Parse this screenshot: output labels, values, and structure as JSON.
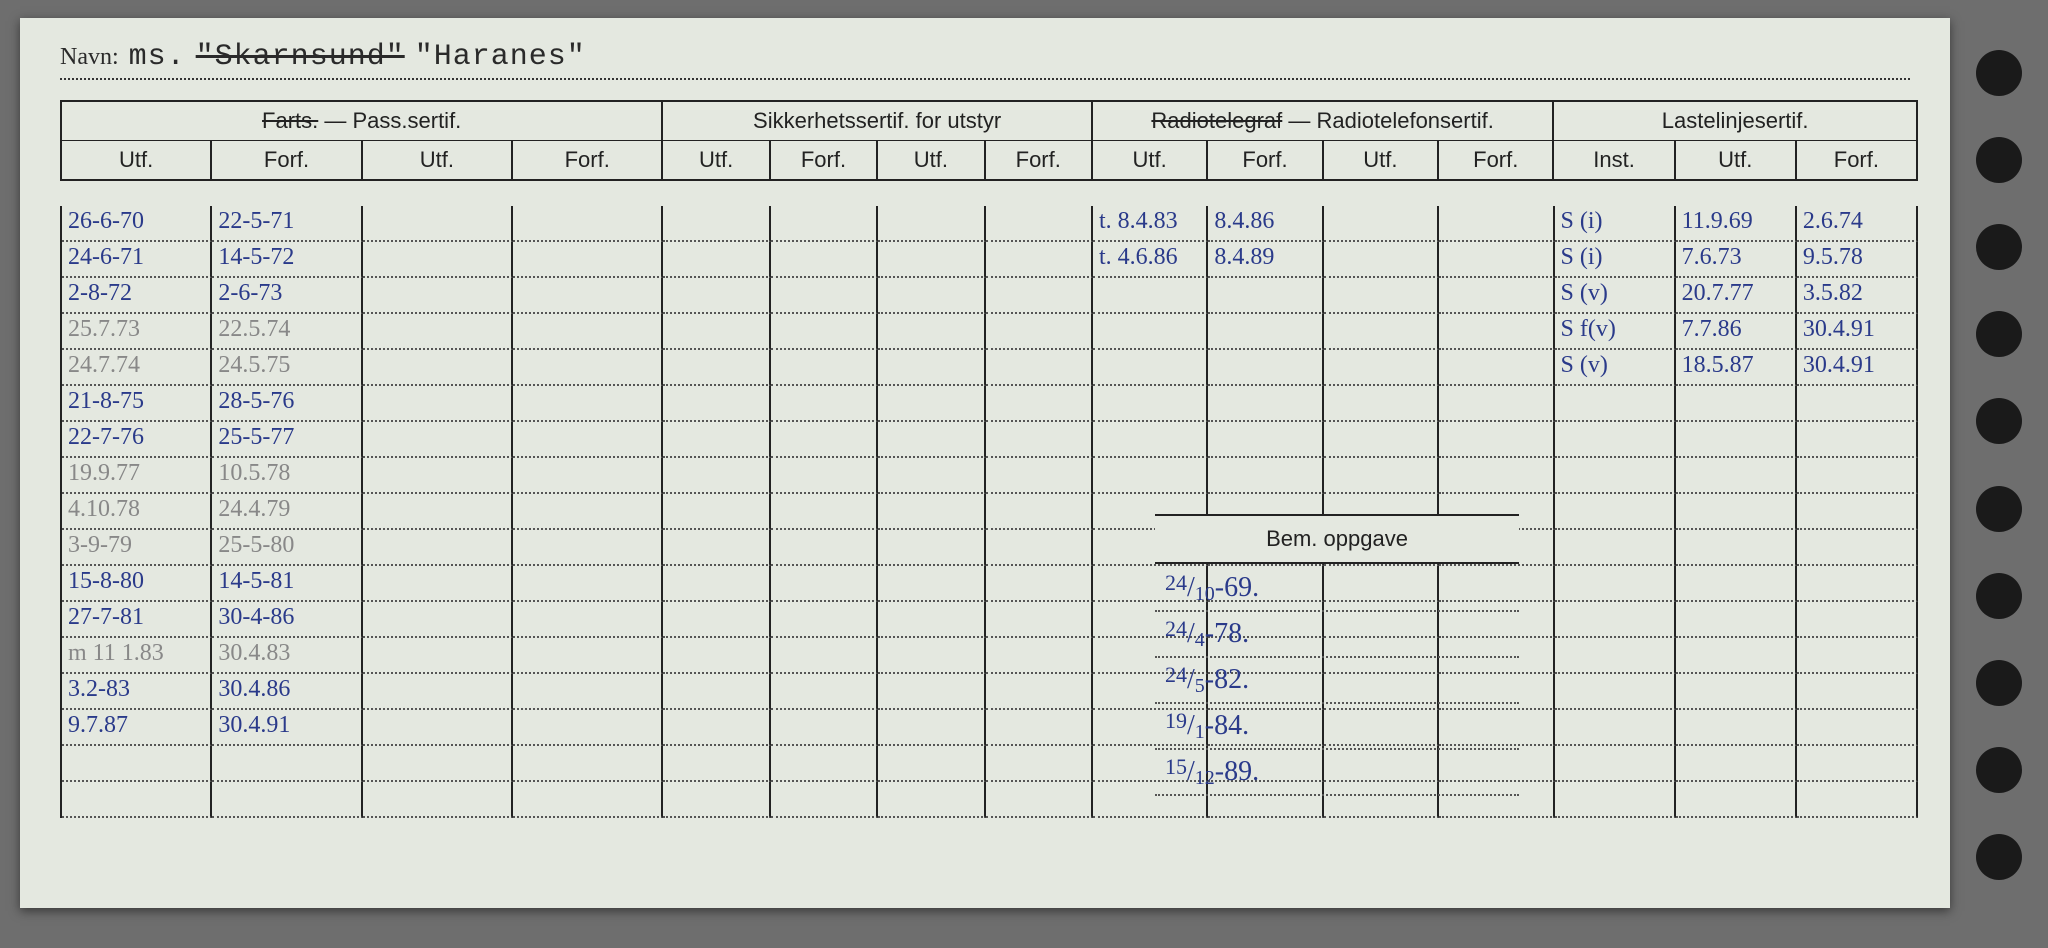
{
  "colors": {
    "paper": "#e4e8e0",
    "ink_print": "#222222",
    "ink_pen": "#2a3a8a",
    "ink_pencil": "#888888",
    "background": "#6e6e6e"
  },
  "header": {
    "navn_label": "Navn:",
    "navn_prefix": "ms.",
    "navn_struck": "\"Skarnsund\"",
    "navn_current": "\"Haranes\""
  },
  "groups": [
    {
      "label_struck": "Farts.",
      "label_plain": " — Pass.sertif.",
      "cols": [
        "Utf.",
        "Forf.",
        "Utf.",
        "Forf."
      ]
    },
    {
      "label_plain": "Sikkerhetssertif. for utstyr",
      "cols": [
        "Utf.",
        "Forf.",
        "Utf.",
        "Forf."
      ]
    },
    {
      "label_struck": "Radiotelegraf",
      "label_plain": " — Radiotelefonsertif.",
      "cols": [
        "Utf.",
        "Forf.",
        "Utf.",
        "Forf."
      ]
    },
    {
      "label_plain": "Lastelinjesertif.",
      "cols": [
        "Inst.",
        "Utf.",
        "Forf."
      ]
    }
  ],
  "pass_rows": [
    {
      "utf": "26-6-70",
      "forf": "22-5-71"
    },
    {
      "utf": "24-6-71",
      "forf": "14-5-72"
    },
    {
      "utf": "2-8-72",
      "forf": "2-6-73"
    },
    {
      "utf": "25.7.73",
      "forf": "22.5.74",
      "pencil": true
    },
    {
      "utf": "24.7.74",
      "forf": "24.5.75",
      "pencil": true
    },
    {
      "utf": "21-8-75",
      "forf": "28-5-76"
    },
    {
      "utf": "22-7-76",
      "forf": "25-5-77"
    },
    {
      "utf": "19.9.77",
      "forf": "10.5.78",
      "pencil": true
    },
    {
      "utf": "4.10.78",
      "forf": "24.4.79",
      "pencil": true
    },
    {
      "utf": "3-9-79",
      "forf": "25-5-80",
      "pencil": true
    },
    {
      "utf": "15-8-80",
      "forf": "14-5-81"
    },
    {
      "utf": "27-7-81",
      "forf": "30-4-86"
    },
    {
      "utf": "m 11 1.83",
      "forf": "30.4.83",
      "pencil": true
    },
    {
      "utf": "3.2-83",
      "forf": "30.4.86"
    },
    {
      "utf": "9.7.87",
      "forf": "30.4.91"
    }
  ],
  "radio_rows": [
    {
      "utf": "t. 8.4.83",
      "forf": "8.4.86"
    },
    {
      "utf": "t. 4.6.86",
      "forf": "8.4.89"
    }
  ],
  "laste_rows": [
    {
      "inst": "S (i)",
      "utf": "11.9.69",
      "forf": "2.6.74"
    },
    {
      "inst": "S (i)",
      "utf": "7.6.73",
      "forf": "9.5.78"
    },
    {
      "inst": "S (v)",
      "utf": "20.7.77",
      "forf": "3.5.82"
    },
    {
      "inst": "S f(v)",
      "utf": "7.7.86",
      "forf": "30.4.91"
    },
    {
      "inst": "S (v)",
      "utf": "18.5.87",
      "forf": "30.4.91"
    }
  ],
  "bem": {
    "header": "Bem. oppgave",
    "rows": [
      {
        "d": "24",
        "m": "10",
        "y": "69"
      },
      {
        "d": "24",
        "m": "4",
        "y": "78"
      },
      {
        "d": "24",
        "m": "5",
        "y": "82"
      },
      {
        "d": "19",
        "m": "1",
        "y": "84"
      },
      {
        "d": "15",
        "m": "12",
        "y": "89"
      }
    ]
  },
  "hole_count": 10
}
